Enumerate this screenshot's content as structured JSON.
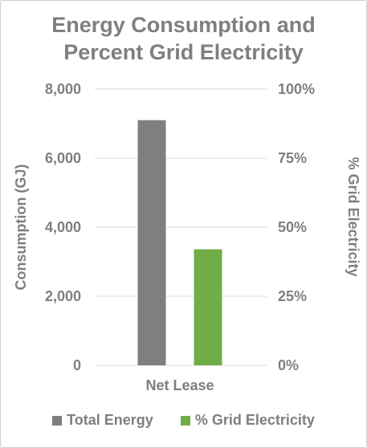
{
  "chart_data": {
    "type": "bar",
    "title_lines": [
      "Energy Consumption and",
      "Percent Grid Electricity"
    ],
    "categories": [
      "Net Lease"
    ],
    "series": [
      {
        "name": "Total Energy",
        "axis": "left",
        "color": "#7f7f80",
        "values": [
          7100
        ]
      },
      {
        "name": "% Grid Electricity",
        "axis": "right",
        "color": "#70ad47",
        "values": [
          42
        ]
      }
    ],
    "y_left": {
      "label": "Consumption (GJ)",
      "range": [
        0,
        8000
      ],
      "ticks": [
        "0",
        "2,000",
        "4,000",
        "6,000",
        "8,000"
      ],
      "tick_values": [
        0,
        2000,
        4000,
        6000,
        8000
      ]
    },
    "y_right": {
      "label": "% Grid Electricity",
      "range": [
        0,
        100
      ],
      "ticks": [
        "0%",
        "25%",
        "50%",
        "75%",
        "100%"
      ],
      "tick_values": [
        0,
        25,
        50,
        75,
        100
      ]
    },
    "grid": true,
    "legend_position": "bottom",
    "gridline_color": "#d9d9d9"
  }
}
